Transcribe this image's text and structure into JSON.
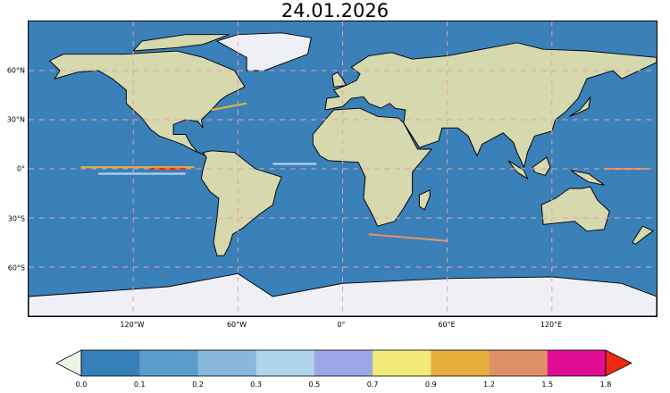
{
  "title": "24.01.2026",
  "map": {
    "projection": "plate-carree",
    "colors": {
      "ocean": "#3a80b9",
      "land": "#d6d8ad",
      "ice": "#eef0f5",
      "grid": "#e8a0b0"
    },
    "lon_labels": [
      "120°W",
      "60°W",
      "0°",
      "60°E",
      "120°E"
    ],
    "lat_labels": [
      "60°N",
      "30°N",
      "0°",
      "30°S",
      "60°S"
    ]
  },
  "colorbar": {
    "ticks": [
      "0.0",
      "0.1",
      "0.2",
      "0.3",
      "0.5",
      "0.7",
      "0.9",
      "1.2",
      "1.5",
      "1.8"
    ],
    "under_color": "#eaf6e4",
    "over_color": "#ee2a10",
    "colors": [
      "#3580b8",
      "#5b9ccb",
      "#88b8dc",
      "#b1d4ee",
      "#9ca8e6",
      "#f2ea78",
      "#e6ae3a",
      "#e09068",
      "#e00c94"
    ]
  }
}
